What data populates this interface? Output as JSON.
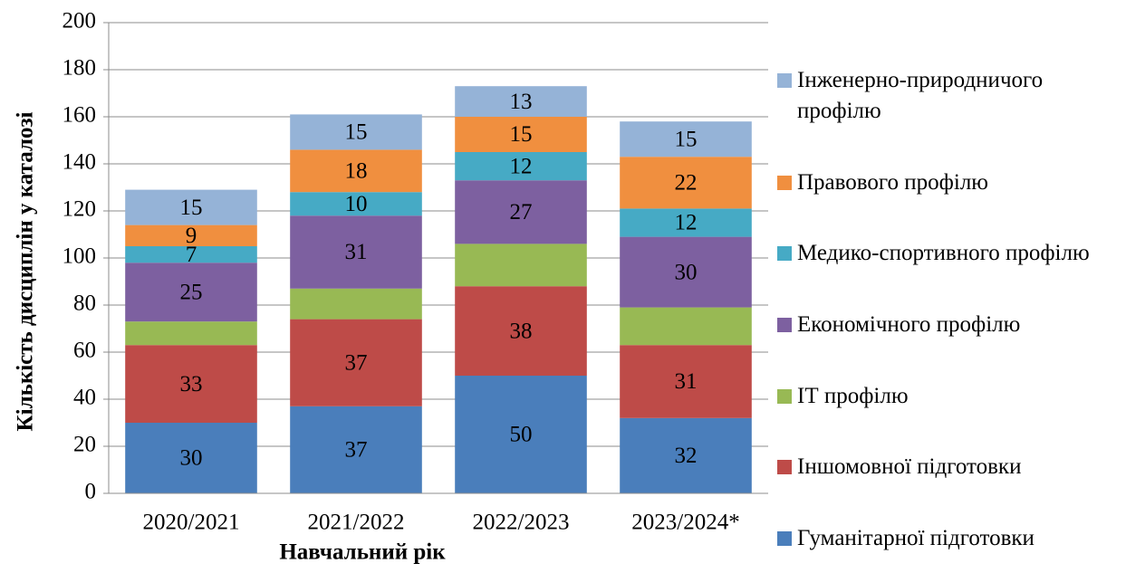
{
  "chart_data": {
    "type": "stacked_bar",
    "x_label": "Навчальний рік",
    "y_label": "Кількість дисциплін у каталозі",
    "categories": [
      "2020/2021",
      "2021/2022",
      "2022/2023",
      "2023/2024*"
    ],
    "series": [
      {
        "name": "Гуманітарної підготовки",
        "color": "#4a7ebb",
        "values": [
          30,
          37,
          50,
          32
        ],
        "data_labels": true
      },
      {
        "name": "Іншомовної підготовки",
        "color": "#be4b48",
        "values": [
          33,
          37,
          38,
          31
        ],
        "data_labels": true
      },
      {
        "name": "ІТ профілю",
        "color": "#98b954",
        "values": [
          10,
          13,
          18,
          16
        ],
        "data_labels": false
      },
      {
        "name": "Економічного профілю",
        "color": "#7d60a0",
        "values": [
          25,
          31,
          27,
          30
        ],
        "data_labels": true
      },
      {
        "name": "Медико-спортивного профілю",
        "color": "#46aac5",
        "values": [
          7,
          10,
          12,
          12
        ],
        "data_labels": true
      },
      {
        "name": "Правового профілю",
        "color": "#f08f3f",
        "values": [
          9,
          18,
          15,
          22
        ],
        "data_labels": true
      },
      {
        "name": "Інженерно-природничого профілю",
        "color": "#95b3d7",
        "values": [
          15,
          15,
          13,
          15
        ],
        "data_labels": true
      }
    ],
    "ylim": [
      0,
      200
    ],
    "yticks": [
      0,
      20,
      40,
      60,
      80,
      100,
      120,
      140,
      160,
      180,
      200
    ],
    "grid": true,
    "legend": "right"
  }
}
